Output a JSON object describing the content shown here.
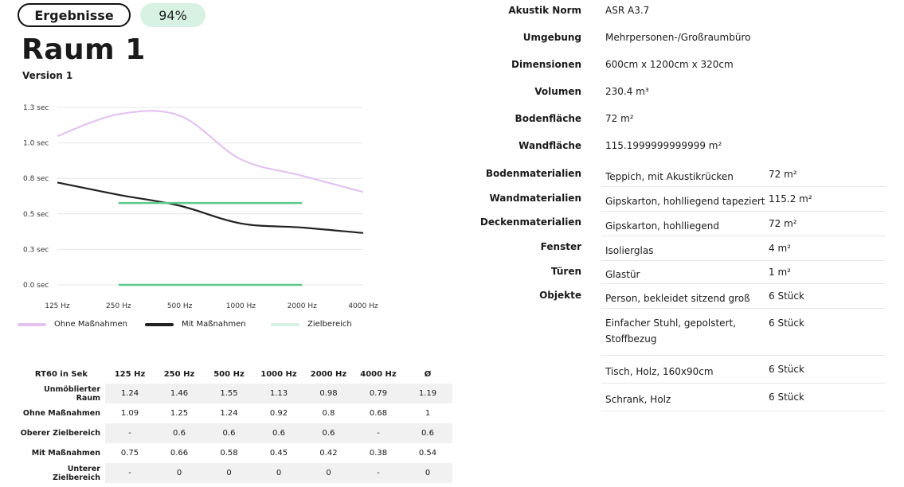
{
  "header": {
    "results_label": "Ergebnisse",
    "score": "94%",
    "room_title": "Raum 1",
    "version": "Version 1"
  },
  "chart_data": {
    "type": "line",
    "x": [
      "125 Hz",
      "250 Hz",
      "500 Hz",
      "1000 Hz",
      "2000 Hz",
      "4000 Hz"
    ],
    "y_ticks": [
      "1.3 sec",
      "1.0 sec",
      "0.8 sec",
      "0.5 sec",
      "0.3 sec",
      "0.0 sec"
    ],
    "series": [
      {
        "name": "Ohne Maßnahmen",
        "color": "#e3c3f0",
        "values": [
          1.09,
          1.25,
          1.24,
          0.92,
          0.8,
          0.68
        ]
      },
      {
        "name": "Mit Maßnahmen",
        "color": "#222222",
        "values": [
          0.75,
          0.66,
          0.58,
          0.45,
          0.42,
          0.38
        ]
      },
      {
        "name": "Zielbereich",
        "color": "#5cc98a",
        "values": [
          null,
          0.6,
          0.6,
          0.6,
          0.6,
          null
        ],
        "lower": [
          null,
          0,
          0,
          0,
          0,
          null
        ]
      }
    ],
    "ylim": [
      0,
      1.3
    ],
    "grid": true,
    "legend_position": "bottom"
  },
  "legend": [
    {
      "label": "Ohne Maßnahmen",
      "color": "#e3c3f0"
    },
    {
      "label": "Mit Maßnahmen",
      "color": "#222222"
    },
    {
      "label": "Zielbereich",
      "color": "#d7f2e3"
    }
  ],
  "rt_table": {
    "header": [
      "RT60 in Sek",
      "125 Hz",
      "250 Hz",
      "500 Hz",
      "1000 Hz",
      "2000 Hz",
      "4000 Hz",
      "Ø"
    ],
    "rows": [
      [
        "Unmöblierter Raum",
        "1.24",
        "1.46",
        "1.55",
        "1.13",
        "0.98",
        "0.79",
        "1.19"
      ],
      [
        "Ohne Maßnahmen",
        "1.09",
        "1.25",
        "1.24",
        "0.92",
        "0.8",
        "0.68",
        "1"
      ],
      [
        "Oberer Zielbereich",
        "-",
        "0.6",
        "0.6",
        "0.6",
        "0.6",
        "-",
        "0.6"
      ],
      [
        "Mit Maßnahmen",
        "0.75",
        "0.66",
        "0.58",
        "0.45",
        "0.42",
        "0.38",
        "0.54"
      ],
      [
        "Unterer Zielbereich",
        "-",
        "0",
        "0",
        "0",
        "0",
        "-",
        "0"
      ]
    ]
  },
  "properties": [
    {
      "label": "Akustik Norm",
      "value": "ASR A3.7"
    },
    {
      "label": "Umgebung",
      "value": "Mehrpersonen-/Großraumbüro"
    },
    {
      "label": "Dimensionen",
      "value": "600cm x 1200cm x 320cm"
    },
    {
      "label": "Volumen",
      "value": "230.4 m³"
    },
    {
      "label": "Bodenfläche",
      "value": "72 m²"
    },
    {
      "label": "Wandfläche",
      "value": "115.1999999999999 m²"
    }
  ],
  "materials": [
    {
      "label": "Bodenmaterialien",
      "items": [
        {
          "name": "Teppich, mit Akustikrücken",
          "qty": "72 m²"
        }
      ]
    },
    {
      "label": "Wandmaterialien",
      "items": [
        {
          "name": "Gipskarton, hohlliegend tapeziert",
          "qty": "115.2 m²"
        }
      ]
    },
    {
      "label": "Deckenmaterialien",
      "items": [
        {
          "name": "Gipskarton, hohlliegend",
          "qty": "72 m²"
        }
      ]
    },
    {
      "label": "Fenster",
      "items": [
        {
          "name": "Isolierglas",
          "qty": "4 m²"
        }
      ]
    },
    {
      "label": "Türen",
      "items": [
        {
          "name": "Glastür",
          "qty": "1 m²"
        }
      ]
    },
    {
      "label": "Objekte",
      "items": [
        {
          "name": "Person, bekleidet sitzend groß",
          "qty": "6 Stück"
        },
        {
          "name": "Einfacher Stuhl, gepolstert,",
          "name2": "Stoffbezug",
          "qty": "6 Stück"
        },
        {
          "name": "Tisch, Holz, 160x90cm",
          "qty": "6 Stück"
        },
        {
          "name": "Schrank, Holz",
          "qty": "6 Stück"
        }
      ]
    }
  ]
}
